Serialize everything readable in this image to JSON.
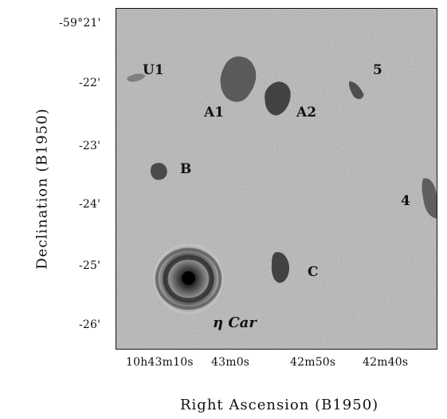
{
  "figure": {
    "x_axis_label": "Right Ascension (B1950)",
    "y_axis_label": "Declination (B1950)",
    "x_tick_labels": [
      "10h43m10s",
      "43m0s",
      "42m50s",
      "42m40s"
    ],
    "y_tick_labels": [
      "-59°21'",
      "-22'",
      "-23'",
      "-24'",
      "-25'",
      "-26'"
    ],
    "annotations": [
      "U1",
      "5",
      "A1",
      "A2",
      "B",
      "4",
      "C",
      "η Car"
    ],
    "colors": {
      "background_gray": "#c9c9c9",
      "dark_feature": "#2b2b2b",
      "frame": "#111111"
    }
  }
}
